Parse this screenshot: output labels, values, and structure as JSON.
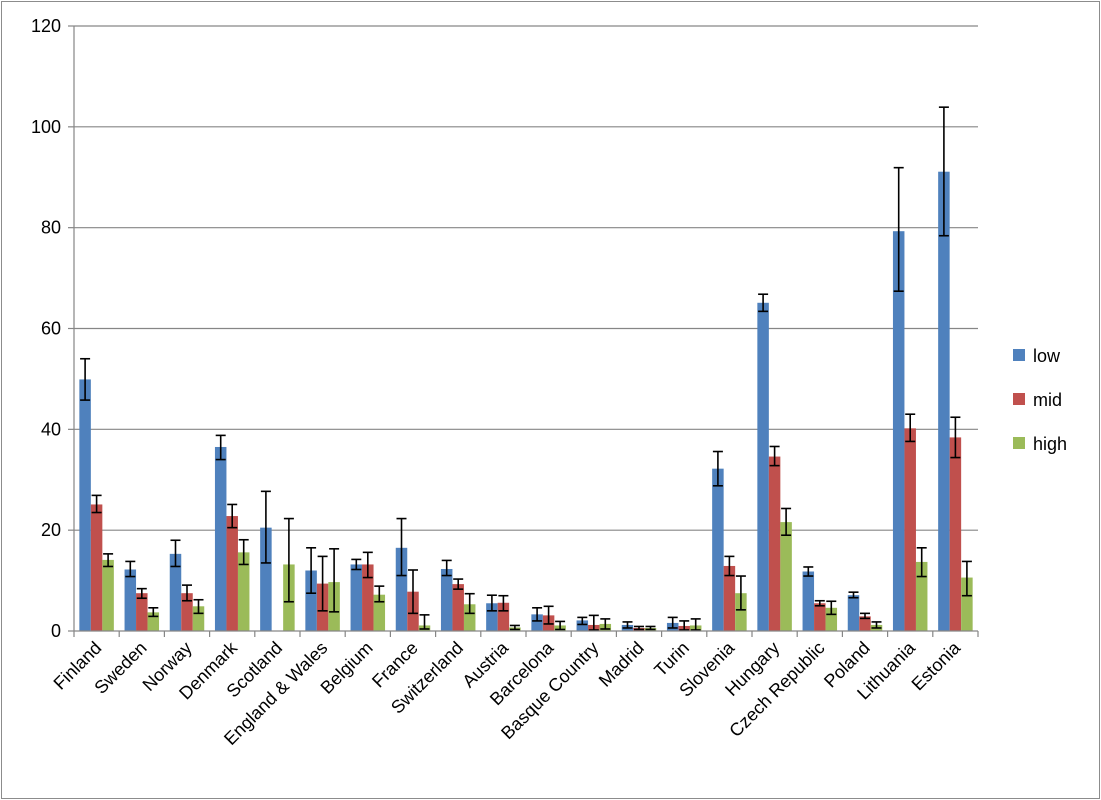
{
  "chart_data": {
    "type": "bar",
    "title": "",
    "xlabel": "",
    "ylabel": "",
    "ylim": [
      0,
      120
    ],
    "yticks": [
      0,
      20,
      40,
      60,
      80,
      100,
      120
    ],
    "grid": "horizontal",
    "legend_position": "right",
    "categories": [
      "Finland",
      "Sweden",
      "Norway",
      "Denmark",
      "Scotland",
      "England & Wales",
      "Belgium",
      "France",
      "Switzerland",
      "Austria",
      "Barcelona",
      "Basque Country",
      "Madrid",
      "Turin",
      "Slovenia",
      "Hungary",
      "Czech Republic",
      "Poland",
      "Lithuania",
      "Estonia"
    ],
    "series": [
      {
        "name": "low",
        "color": "#4f81bd",
        "values": [
          49.9,
          12.2,
          15.3,
          36.5,
          20.5,
          12.0,
          13.2,
          16.5,
          12.3,
          5.5,
          3.3,
          2.1,
          1.2,
          1.6,
          32.2,
          65.1,
          11.8,
          7.1,
          79.3,
          91.1
        ],
        "error_low": [
          45.8,
          10.8,
          12.8,
          34.0,
          13.5,
          7.5,
          12.2,
          11.0,
          11.0,
          4.0,
          2.0,
          1.3,
          0.6,
          0.6,
          28.8,
          63.4,
          10.9,
          6.6,
          67.4,
          78.4
        ],
        "error_high": [
          54.0,
          13.8,
          18.0,
          38.8,
          27.7,
          16.5,
          14.2,
          22.3,
          14.0,
          7.1,
          4.6,
          2.7,
          1.8,
          2.7,
          35.6,
          66.8,
          12.7,
          7.7,
          91.9,
          103.9
        ]
      },
      {
        "name": "mid",
        "color": "#c0504d",
        "values": [
          25.1,
          7.5,
          7.5,
          22.8,
          0,
          9.4,
          13.2,
          7.8,
          9.3,
          5.6,
          3.1,
          1.2,
          0.6,
          1.0,
          12.9,
          34.6,
          5.5,
          2.9,
          40.2,
          38.4
        ],
        "error_low": [
          23.5,
          6.5,
          6.0,
          20.5,
          0,
          4.0,
          10.6,
          3.5,
          8.3,
          4.0,
          1.4,
          0.2,
          0.3,
          0.2,
          11.0,
          32.8,
          5.0,
          2.5,
          37.6,
          34.4
        ],
        "error_high": [
          26.9,
          8.4,
          9.1,
          25.1,
          0,
          14.8,
          15.6,
          12.1,
          10.3,
          7.0,
          4.9,
          3.1,
          0.9,
          2.0,
          14.8,
          36.6,
          6.0,
          3.5,
          43.0,
          42.4
        ]
      },
      {
        "name": "high",
        "color": "#9bbb59",
        "values": [
          14.1,
          3.7,
          4.9,
          15.6,
          13.2,
          9.7,
          7.2,
          1.1,
          5.3,
          0.7,
          1.1,
          1.4,
          0.6,
          1.1,
          7.5,
          21.6,
          4.6,
          1.2,
          13.7,
          10.6
        ],
        "error_low": [
          12.8,
          2.9,
          3.5,
          13.2,
          5.8,
          3.8,
          5.8,
          0.4,
          3.5,
          0.3,
          0.3,
          0.4,
          0.3,
          0.2,
          4.2,
          19.0,
          3.3,
          0.6,
          10.8,
          7.0
        ],
        "error_high": [
          15.3,
          4.6,
          6.2,
          18.1,
          22.3,
          16.3,
          8.9,
          3.2,
          7.4,
          1.1,
          1.9,
          2.4,
          0.9,
          2.4,
          10.9,
          24.3,
          5.9,
          1.8,
          16.5,
          13.8
        ]
      }
    ]
  }
}
